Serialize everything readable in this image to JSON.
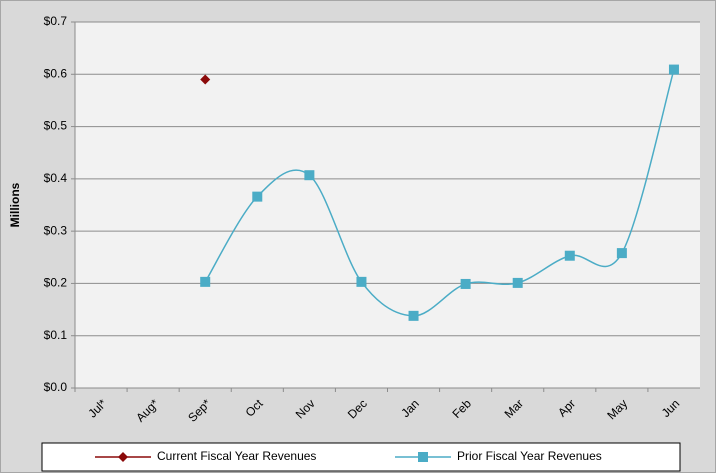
{
  "chart_data": {
    "type": "line",
    "y_axis_label": "Millions",
    "categories": [
      "Jul*",
      "Aug*",
      "Sep*",
      "Oct",
      "Nov",
      "Dec",
      "Jan",
      "Feb",
      "Mar",
      "Apr",
      "May",
      "Jun"
    ],
    "series": [
      {
        "name": "Current Fiscal Year Revenues",
        "color": "#8b0a0a",
        "marker": "diamond",
        "values": [
          null,
          null,
          0.59,
          null,
          null,
          null,
          null,
          null,
          null,
          null,
          null,
          null
        ]
      },
      {
        "name": "Prior Fiscal Year Revenues",
        "color": "#4bacc6",
        "marker": "square",
        "values": [
          null,
          null,
          0.203,
          0.366,
          0.407,
          0.203,
          0.138,
          0.199,
          0.201,
          0.253,
          0.258,
          0.609
        ]
      }
    ],
    "ylim": [
      0,
      0.7
    ],
    "yticks": [
      {
        "value": 0,
        "label": "$0.0"
      },
      {
        "value": 0.1,
        "label": "$0.1"
      },
      {
        "value": 0.2,
        "label": "$0.2"
      },
      {
        "value": 0.3,
        "label": "$0.3"
      },
      {
        "value": 0.4,
        "label": "$0.4"
      },
      {
        "value": 0.5,
        "label": "$0.5"
      },
      {
        "value": 0.6,
        "label": "$0.6"
      },
      {
        "value": 0.7,
        "label": "$0.7"
      }
    ],
    "grid": true,
    "legend": "bottom"
  }
}
